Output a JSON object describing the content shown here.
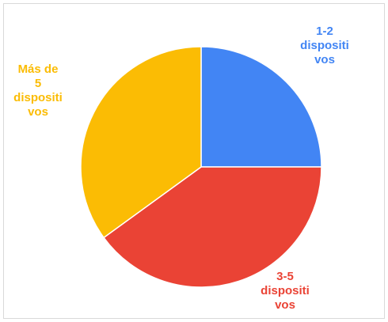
{
  "chart_data": {
    "type": "pie",
    "start_angle_deg": 0,
    "direction": "clockwise",
    "slices": [
      {
        "label_lines": [
          "1-2",
          "dispositi",
          "vos"
        ],
        "value": 25,
        "color": "#4285f4"
      },
      {
        "label_lines": [
          "3-5",
          "dispositi",
          "vos"
        ],
        "value": 40,
        "color": "#ea4335"
      },
      {
        "label_lines": [
          "Más de",
          "5",
          "dispositi",
          "vos"
        ],
        "value": 35,
        "color": "#fbbc04"
      }
    ]
  }
}
